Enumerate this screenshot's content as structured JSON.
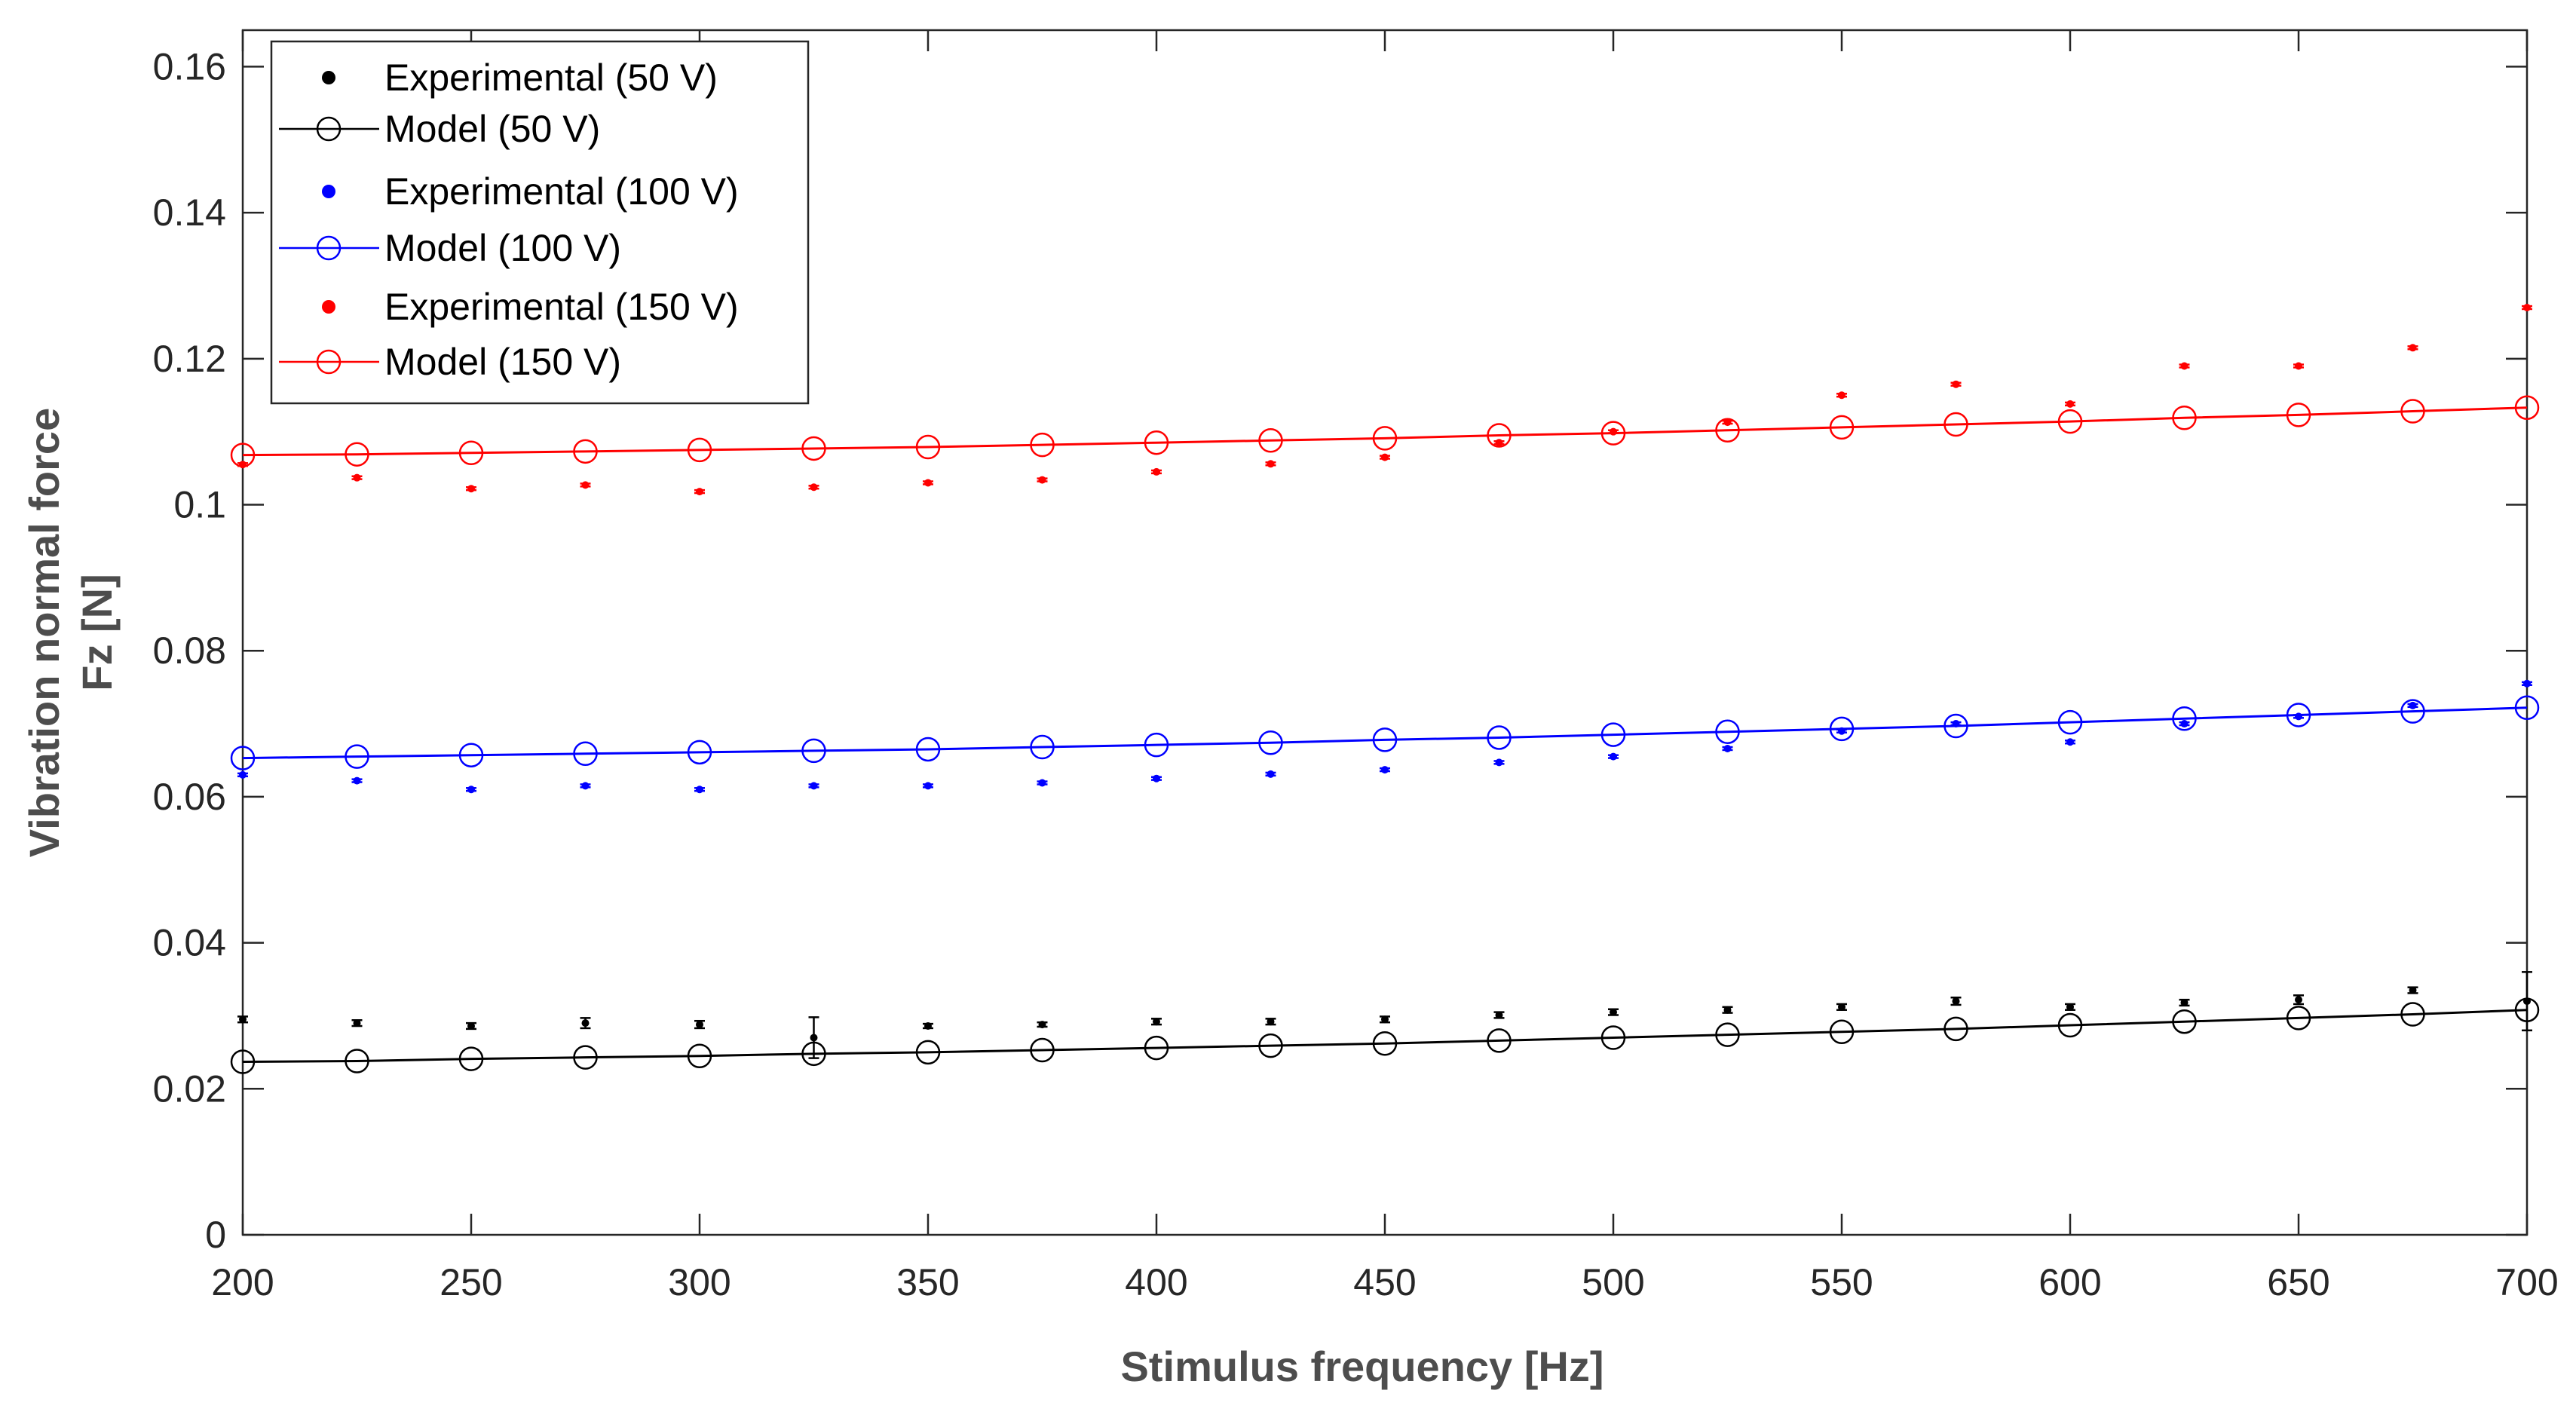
{
  "chart_data": {
    "type": "line",
    "xlabel": "Stimulus frequency [Hz]",
    "ylabel_line1": "Vibration normal force",
    "ylabel_line2": "Fz [N]",
    "xlim": [
      200,
      700
    ],
    "ylim": [
      0,
      0.165
    ],
    "xticks": [
      200,
      250,
      300,
      350,
      400,
      450,
      500,
      550,
      600,
      650,
      700
    ],
    "xtick_labels": [
      "200",
      "250",
      "300",
      "350",
      "400",
      "450",
      "500",
      "550",
      "600",
      "650",
      "700"
    ],
    "yticks": [
      0,
      0.02,
      0.04,
      0.06,
      0.08,
      0.1,
      0.12,
      0.14,
      0.16
    ],
    "ytick_labels": [
      "0",
      "0.02",
      "0.04",
      "0.06",
      "0.08",
      "0.1",
      "0.12",
      "0.14",
      "0.16"
    ],
    "legend_position": "top-left",
    "x": [
      200,
      225,
      250,
      275,
      300,
      325,
      350,
      375,
      400,
      425,
      450,
      475,
      500,
      525,
      550,
      575,
      600,
      625,
      650,
      675,
      700
    ],
    "series": [
      {
        "name": "Experimental (50 V)",
        "kind": "experimental",
        "color": "#000000",
        "values": [
          0.0295,
          0.029,
          0.0286,
          0.029,
          0.0288,
          0.027,
          0.0286,
          0.0288,
          0.0292,
          0.0292,
          0.0295,
          0.0301,
          0.0305,
          0.0308,
          0.0312,
          0.032,
          0.0312,
          0.0318,
          0.0322,
          0.0335,
          0.032
        ],
        "errors": [
          0.0004,
          0.0004,
          0.0004,
          0.0007,
          0.0005,
          0.0028,
          0.0003,
          0.0003,
          0.0004,
          0.0004,
          0.0004,
          0.0004,
          0.0004,
          0.0004,
          0.0004,
          0.0005,
          0.0004,
          0.0004,
          0.0006,
          0.0004,
          0.004
        ]
      },
      {
        "name": "Model (50 V)",
        "kind": "model",
        "color": "#000000",
        "values": [
          0.0237,
          0.0238,
          0.0241,
          0.0243,
          0.0245,
          0.0248,
          0.025,
          0.0253,
          0.0256,
          0.0259,
          0.0262,
          0.0266,
          0.027,
          0.0274,
          0.0278,
          0.0282,
          0.0287,
          0.0292,
          0.0297,
          0.0302,
          0.0308
        ]
      },
      {
        "name": "Experimental (100 V)",
        "kind": "experimental",
        "color": "#0000ff",
        "values": [
          0.063,
          0.0622,
          0.061,
          0.0615,
          0.061,
          0.0615,
          0.0615,
          0.0619,
          0.0625,
          0.0631,
          0.0637,
          0.0647,
          0.0655,
          0.0666,
          0.069,
          0.07,
          0.0675,
          0.07,
          0.071,
          0.0725,
          0.0755
        ],
        "errors": [
          0.0002,
          0.0002,
          0.0002,
          0.0002,
          0.0002,
          0.0002,
          0.0002,
          0.0002,
          0.0002,
          0.0002,
          0.0002,
          0.0002,
          0.0002,
          0.0002,
          0.0002,
          0.0002,
          0.0002,
          0.0002,
          0.0002,
          0.0002,
          0.0002
        ]
      },
      {
        "name": "Model (100 V)",
        "kind": "model",
        "color": "#0000ff",
        "values": [
          0.0653,
          0.0655,
          0.0657,
          0.0659,
          0.0661,
          0.0663,
          0.0665,
          0.0668,
          0.0671,
          0.0674,
          0.0678,
          0.0681,
          0.0685,
          0.0689,
          0.0693,
          0.0697,
          0.0702,
          0.0707,
          0.0712,
          0.0717,
          0.0722
        ]
      },
      {
        "name": "Experimental (150 V)",
        "kind": "experimental",
        "color": "#ff0000",
        "values": [
          0.1055,
          0.1037,
          0.1022,
          0.1027,
          0.1018,
          0.1024,
          0.103,
          0.1034,
          0.1045,
          0.1056,
          0.1065,
          0.1085,
          0.11,
          0.1113,
          0.115,
          0.1165,
          0.1138,
          0.119,
          0.119,
          0.1215,
          0.127
        ],
        "errors": [
          0.0002,
          0.0002,
          0.0002,
          0.0002,
          0.0002,
          0.0002,
          0.0002,
          0.0002,
          0.0002,
          0.0002,
          0.0002,
          0.0002,
          0.0002,
          0.0002,
          0.0002,
          0.0002,
          0.0002,
          0.0002,
          0.0002,
          0.0002,
          0.0002
        ]
      },
      {
        "name": "Model (150 V)",
        "kind": "model",
        "color": "#ff0000",
        "values": [
          0.1068,
          0.1069,
          0.1071,
          0.1073,
          0.1075,
          0.1077,
          0.1079,
          0.1082,
          0.1085,
          0.1088,
          0.1091,
          0.1095,
          0.1098,
          0.1102,
          0.1106,
          0.111,
          0.1114,
          0.1119,
          0.1123,
          0.1128,
          0.1133
        ]
      }
    ]
  }
}
